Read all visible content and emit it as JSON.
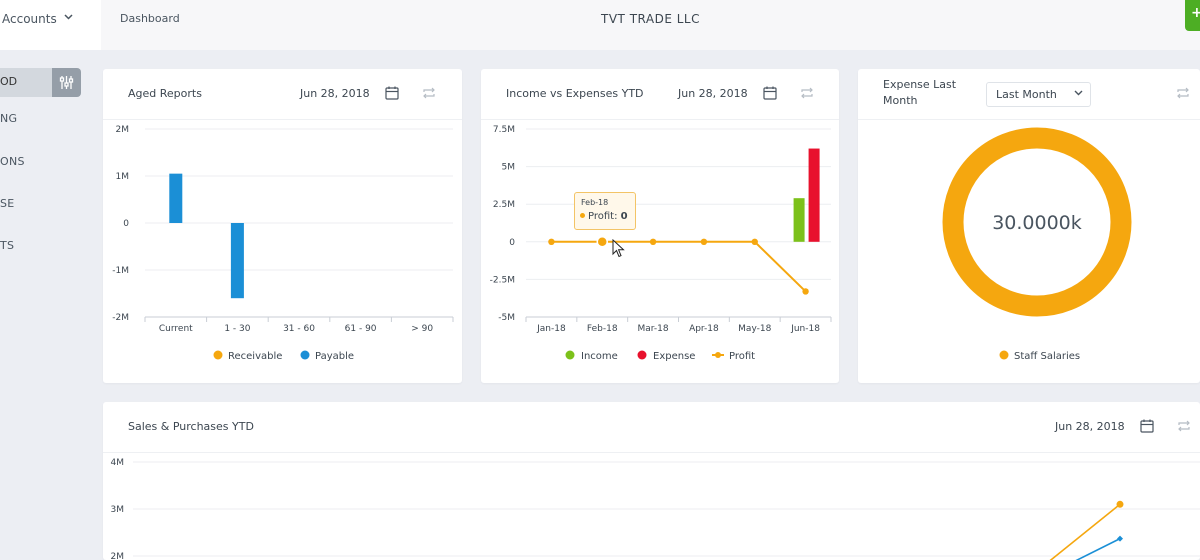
{
  "sidebar": {
    "title": "Accounts",
    "active_item": "OD",
    "items": [
      "NG",
      "ONS",
      "SE",
      "TS"
    ]
  },
  "header": {
    "breadcrumb": "Dashboard",
    "company": "TVT TRADE LLC",
    "add_label": "+"
  },
  "aged": {
    "title": "Aged Reports",
    "date": "Jun 28, 2018",
    "chart_data": {
      "type": "bar",
      "categories": [
        "Current",
        "1 - 30",
        "31 - 60",
        "61 - 90",
        "> 90"
      ],
      "yticks": [
        "2M",
        "1M",
        "0",
        "-1M",
        "-2M"
      ],
      "ylim": [
        -2000000,
        2000000
      ],
      "series": [
        {
          "name": "Receivable",
          "color": "#f5a70f",
          "values": [
            0,
            0,
            0,
            0,
            0
          ]
        },
        {
          "name": "Payable",
          "color": "#1b8fd6",
          "values": [
            1050000,
            -1600000,
            0,
            0,
            0
          ]
        }
      ]
    }
  },
  "income": {
    "title": "Income vs Expenses YTD",
    "date": "Jun 28, 2018",
    "tooltip": {
      "date": "Feb-18",
      "label": "Profit:",
      "value": "0"
    },
    "chart_data": {
      "type": "bar",
      "categories": [
        "Jan-18",
        "Feb-18",
        "Mar-18",
        "Apr-18",
        "May-18",
        "Jun-18"
      ],
      "yticks": [
        "7.5M",
        "5M",
        "2.5M",
        "0",
        "-2.5M",
        "-5M"
      ],
      "ylim": [
        -5000000,
        7500000
      ],
      "series": [
        {
          "name": "Income",
          "color": "#7cc11a",
          "type": "bar",
          "values": [
            0,
            0,
            0,
            0,
            0,
            2900000
          ]
        },
        {
          "name": "Expense",
          "color": "#e8112d",
          "type": "bar",
          "values": [
            0,
            0,
            0,
            0,
            0,
            6200000
          ]
        },
        {
          "name": "Profit",
          "color": "#f5a70f",
          "type": "line",
          "values": [
            0,
            0,
            0,
            0,
            0,
            -3300000
          ]
        }
      ]
    }
  },
  "expense": {
    "title_line1": "Expense Last",
    "title_line2": "Month",
    "filter": "Last Month",
    "center_value": "30.0000k",
    "chart_data": {
      "type": "pie",
      "series": [
        {
          "name": "Staff Salaries",
          "color": "#f5a70f",
          "value": 30000
        }
      ]
    }
  },
  "sales": {
    "title": "Sales & Purchases YTD",
    "date": "Jun 28, 2018",
    "chart_data": {
      "type": "line",
      "yticks": [
        "4M",
        "3M",
        "2M"
      ],
      "ylim": [
        2000000,
        4000000
      ],
      "series": [
        {
          "color": "#f5a70f",
          "values": [
            3100000
          ]
        },
        {
          "color": "#1b8fd6",
          "values": [
            2370000
          ]
        }
      ]
    }
  }
}
